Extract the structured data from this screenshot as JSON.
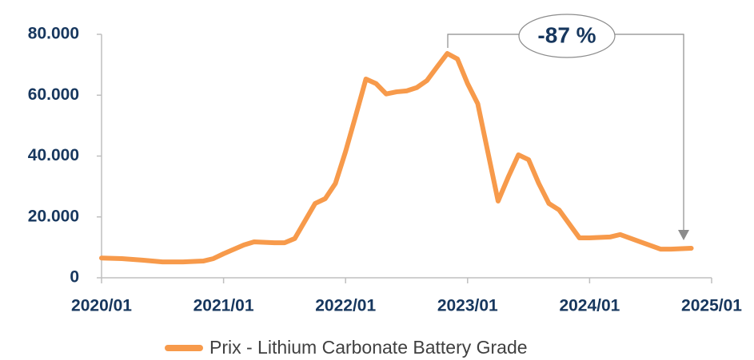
{
  "chart_data": {
    "type": "line",
    "x": [
      "2020/01",
      "2020/03",
      "2020/05",
      "2020/07",
      "2020/09",
      "2020/11",
      "2020/12",
      "2021/01",
      "2021/03",
      "2021/04",
      "2021/06",
      "2021/07",
      "2021/08",
      "2021/10",
      "2021/11",
      "2021/12",
      "2022/01",
      "2022/02",
      "2022/03",
      "2022/04",
      "2022/05",
      "2022/06",
      "2022/07",
      "2022/08",
      "2022/09",
      "2022/10",
      "2022/11",
      "2022/12",
      "2023/01",
      "2023/02",
      "2023/04",
      "2023/05",
      "2023/06",
      "2023/07",
      "2023/08",
      "2023/09",
      "2023/10",
      "2023/12",
      "2024/01",
      "2024/03",
      "2024/04",
      "2024/06",
      "2024/08",
      "2024/09",
      "2024/11"
    ],
    "series": [
      {
        "name": "Prix - Lithium Carbonate Battery Grade",
        "color": "#f79a4b",
        "values": [
          6500,
          6300,
          5800,
          5200,
          5200,
          5500,
          6300,
          7900,
          10800,
          11800,
          11500,
          11500,
          12900,
          24400,
          26000,
          31000,
          41500,
          53300,
          65300,
          63800,
          60400,
          61100,
          61400,
          62500,
          64800,
          69300,
          73700,
          71900,
          63800,
          57200,
          25200,
          33100,
          40400,
          38800,
          31000,
          24400,
          22300,
          13100,
          13100,
          13400,
          14200,
          11800,
          9400,
          9400,
          9700
        ]
      }
    ],
    "ylim": [
      0,
      80000
    ],
    "yticks": [
      0,
      {
        "value": 20000,
        "label": "20.000"
      },
      {
        "value": 40000,
        "label": "40.000"
      },
      {
        "value": 60000,
        "label": "60.000"
      },
      {
        "value": 80000,
        "label": "80.000"
      }
    ],
    "xticks": [
      "2020/01",
      "2021/01",
      "2022/01",
      "2023/01",
      "2024/01",
      "2025/01"
    ],
    "xlim": [
      "2020/01",
      "2025/01"
    ],
    "annotation": "-87 %",
    "legend": "bottom"
  }
}
